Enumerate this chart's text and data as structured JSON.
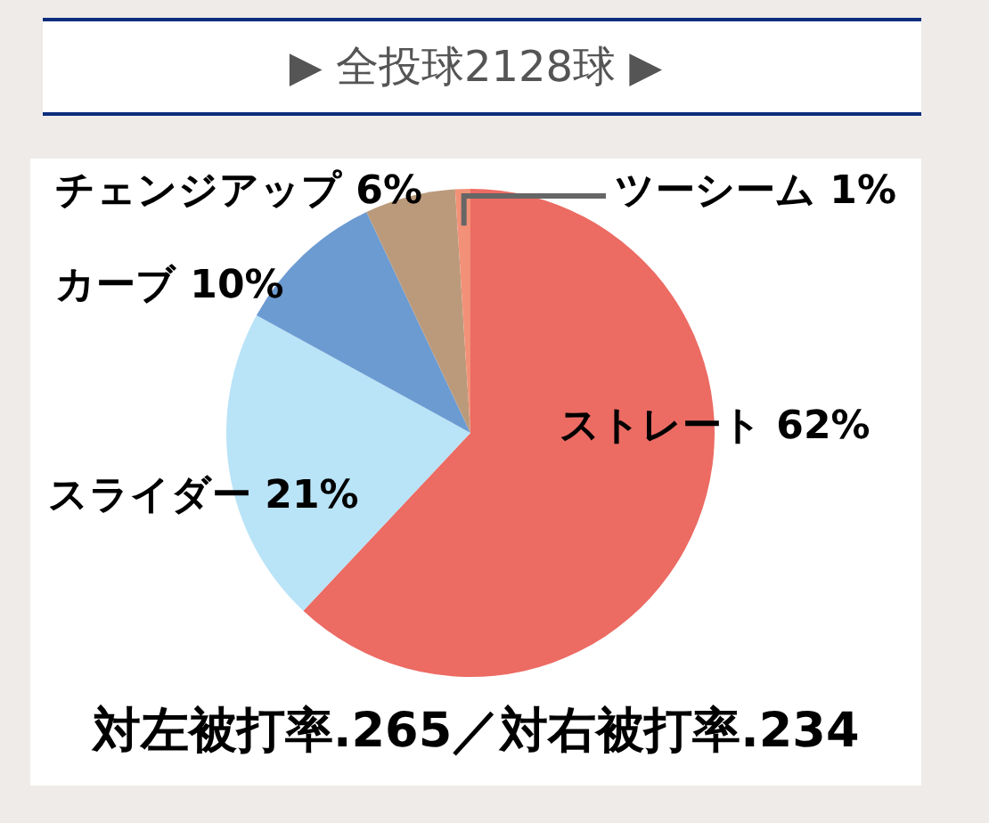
{
  "chart_data": {
    "type": "pie",
    "title": "▶ 全投球2128球 ▶",
    "categories": [
      "ストレート",
      "スライダー",
      "カーブ",
      "チェンジアップ",
      "ツーシーム"
    ],
    "values": [
      62,
      21,
      10,
      6,
      1
    ],
    "colors": [
      "#ec6b63",
      "#b9e3f7",
      "#6c9bd2",
      "#bb9a7c",
      "#f29178"
    ],
    "value_labels": [
      "62%",
      "21%",
      "10%",
      "6%",
      "1%"
    ],
    "annotations": [
      "対左被打率.265／対右被打率.234"
    ],
    "legend": false
  }
}
